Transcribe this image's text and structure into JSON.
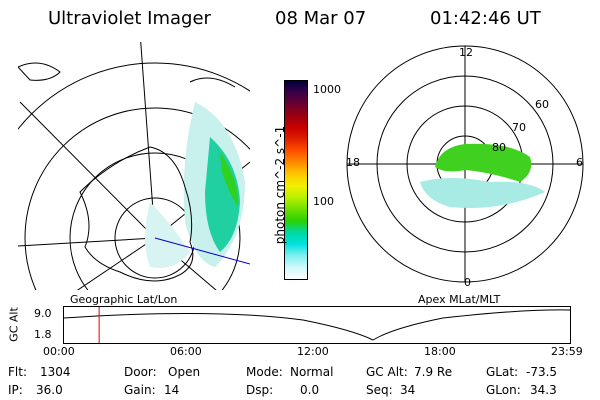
{
  "header": {
    "instrument": "Ultraviolet Imager",
    "date": "08 Mar 07",
    "time": "01:42:46 UT"
  },
  "colorbar": {
    "label": "photon cm^-2 s^-1",
    "ticks": [
      "1000",
      "100"
    ],
    "colors": [
      "#000040",
      "#3a0048",
      "#6a0030",
      "#9a0010",
      "#c80000",
      "#e02000",
      "#ff5000",
      "#ff8a00",
      "#ffc800",
      "#f0f000",
      "#b8f000",
      "#70e000",
      "#2ad000",
      "#00d8a0",
      "#00e0e0",
      "#80f0f0",
      "#d0f8f8",
      "#ffffff"
    ]
  },
  "geo_panel": {
    "label": "Geographic Lat/Lon"
  },
  "apex_panel": {
    "label": "Apex MLat/MLT",
    "mlt_labels": {
      "top": "12",
      "left": "18",
      "right": "6",
      "bottom": "0"
    },
    "lat_labels": [
      "60",
      "70",
      "80"
    ]
  },
  "alt_plot": {
    "ylabel": "GC Alt",
    "ytick_top": "9.0",
    "ytick_bottom": "1.8",
    "xticks": [
      "00:00",
      "06:00",
      "12:00",
      "18:00",
      "23:59"
    ],
    "marker_time_hours": 1.71
  },
  "info": {
    "flt_label": "Flt:",
    "flt_value": "1304",
    "ip_label": "IP:",
    "ip_value": "36.0",
    "door_label": "Door:",
    "door_value": "Open",
    "gain_label": "Gain:",
    "gain_value": "14",
    "mode_label": "Mode:",
    "mode_value": "Normal",
    "dsp_label": "Dsp:",
    "dsp_value": "0.0",
    "gcalt_label": "GC Alt:",
    "gcalt_value": "7.9 Re",
    "seq_label": "Seq:",
    "seq_value": "34",
    "glat_label": "GLat:",
    "glat_value": "-73.5",
    "glon_label": "GLon:",
    "glon_value": "34.3"
  }
}
